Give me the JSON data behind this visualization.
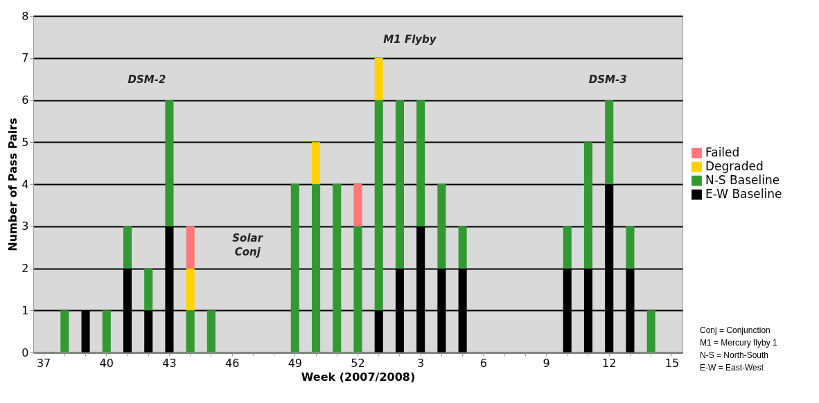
{
  "chart_data": {
    "type": "bar",
    "stacked": true,
    "xlabel": "Week (2007/2008)",
    "ylabel": "Number of Pass Pairs",
    "categories": [
      "37",
      null,
      null,
      "40",
      null,
      null,
      "43",
      null,
      null,
      "46",
      null,
      null,
      "49",
      null,
      null,
      "52",
      null,
      null,
      "3",
      null,
      null,
      "6",
      null,
      null,
      "9",
      null,
      null,
      "12",
      null,
      null,
      "15"
    ],
    "series": [
      {
        "name": "E-W Baseline",
        "color": "#000000",
        "values": [
          null,
          null,
          1,
          null,
          2,
          1,
          3,
          null,
          null,
          null,
          null,
          null,
          null,
          null,
          null,
          null,
          1,
          2,
          3,
          2,
          2,
          null,
          null,
          null,
          null,
          2,
          2,
          4,
          2,
          null,
          null
        ]
      },
      {
        "name": "N-S Baseline",
        "color": "#339933",
        "values": [
          null,
          1,
          null,
          1,
          1,
          1,
          3,
          1,
          1,
          null,
          null,
          null,
          4,
          4,
          4,
          3,
          5,
          4,
          3,
          2,
          1,
          null,
          null,
          null,
          null,
          1,
          3,
          2,
          1,
          1,
          null
        ]
      },
      {
        "name": "Degraded",
        "color": "#ffd200",
        "values": [
          null,
          null,
          null,
          null,
          null,
          null,
          null,
          1,
          null,
          null,
          null,
          null,
          null,
          1,
          null,
          null,
          1,
          null,
          null,
          null,
          null,
          null,
          null,
          null,
          null,
          null,
          null,
          null,
          null,
          null,
          null
        ]
      },
      {
        "name": "Failed",
        "color": "#ff7777",
        "values": [
          null,
          null,
          null,
          null,
          null,
          null,
          null,
          1,
          null,
          null,
          null,
          null,
          null,
          null,
          null,
          1,
          null,
          null,
          null,
          null,
          null,
          null,
          null,
          null,
          null,
          null,
          null,
          null,
          null,
          null,
          null
        ]
      }
    ],
    "ylim": [
      0,
      8
    ],
    "yticks": [
      0,
      1,
      2,
      3,
      4,
      5,
      6,
      7,
      8
    ],
    "grid": "y",
    "legend": "right",
    "annotations": [
      "DSM-2",
      "M1 Flyby",
      "Solar Conj",
      "DSM-3",
      "Conj = Conjunction",
      "M1 = Mercury flyby 1",
      "N-S = North-South",
      "E-W = East-West"
    ]
  }
}
